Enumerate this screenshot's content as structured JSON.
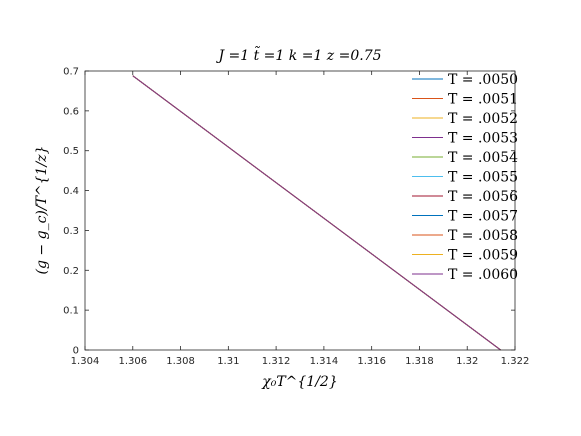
{
  "chart_data": {
    "type": "line",
    "title": "J =1 t̃ =1 k =1 z =0.75",
    "xlabel": "χ₀T^{1/2}",
    "ylabel": "(g − g_c)/T^{1/z}",
    "xlim": [
      1.304,
      1.322
    ],
    "ylim": [
      0,
      0.7
    ],
    "x_ticks": [
      "1.304",
      "1.306",
      "1.308",
      "1.31",
      "1.312",
      "1.314",
      "1.316",
      "1.318",
      "1.32",
      "1.322"
    ],
    "y_ticks": [
      "0",
      "0.1",
      "0.2",
      "0.3",
      "0.4",
      "0.5",
      "0.6",
      "0.7"
    ],
    "grid": false,
    "legend_position": "top-right",
    "series": [
      {
        "name": "T = .0050",
        "color": "#0072BD",
        "x": [
          1.306,
          1.3214
        ],
        "y": [
          0.688,
          0.0
        ]
      },
      {
        "name": "T = .0051",
        "color": "#D95319",
        "x": [
          1.306,
          1.3214
        ],
        "y": [
          0.688,
          0.0
        ]
      },
      {
        "name": "T = .0052",
        "color": "#EDB120",
        "x": [
          1.306,
          1.3214
        ],
        "y": [
          0.688,
          0.0
        ]
      },
      {
        "name": "T = .0053",
        "color": "#7E2F8E",
        "x": [
          1.306,
          1.3214
        ],
        "y": [
          0.688,
          0.0
        ]
      },
      {
        "name": "T = .0054",
        "color": "#77AC30",
        "x": [
          1.306,
          1.3214
        ],
        "y": [
          0.688,
          0.0
        ]
      },
      {
        "name": "T = .0055",
        "color": "#4DBEEE",
        "x": [
          1.306,
          1.3214
        ],
        "y": [
          0.688,
          0.0
        ]
      },
      {
        "name": "T = .0056",
        "color": "#A2142F",
        "x": [
          1.306,
          1.3214
        ],
        "y": [
          0.688,
          0.0
        ]
      },
      {
        "name": "T = .0057",
        "color": "#0072BD",
        "x": [
          1.306,
          1.3214
        ],
        "y": [
          0.688,
          0.0
        ]
      },
      {
        "name": "T = .0058",
        "color": "#D95319",
        "x": [
          1.306,
          1.3214
        ],
        "y": [
          0.688,
          0.0
        ]
      },
      {
        "name": "T = .0059",
        "color": "#EDB120",
        "x": [
          1.306,
          1.3214
        ],
        "y": [
          0.688,
          0.0
        ]
      },
      {
        "name": "T = .0060",
        "color": "#7E2F8E",
        "x": [
          1.306,
          1.3214
        ],
        "y": [
          0.688,
          0.0
        ]
      }
    ]
  }
}
